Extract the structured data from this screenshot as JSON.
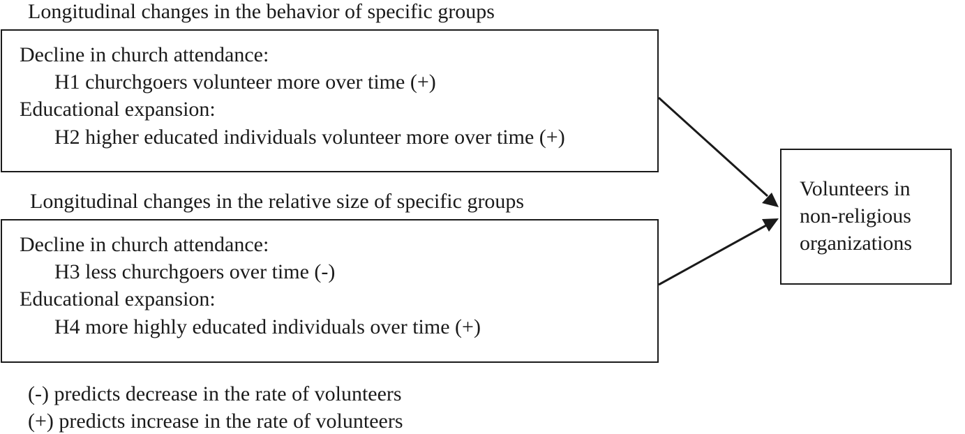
{
  "group1": {
    "heading": "Longitudinal changes in the behavior of specific groups",
    "lines": [
      "Decline in church attendance:",
      "H1 churchgoers volunteer more over time (+)",
      "Educational expansion:",
      "H2 higher educated individuals volunteer more over time (+)"
    ]
  },
  "group2": {
    "heading": "Longitudinal changes in the relative size of specific groups",
    "lines": [
      "Decline in church attendance:",
      "H3 less churchgoers over time (-)",
      "Educational expansion:",
      "H4 more highly educated individuals over time (+)"
    ]
  },
  "outcome": {
    "lines": [
      "Volunteers in",
      "non-religious",
      "organizations"
    ]
  },
  "legend": {
    "lines": [
      "(-)  predicts decrease in the rate of volunteers",
      "(+) predicts increase in the rate of volunteers"
    ]
  }
}
